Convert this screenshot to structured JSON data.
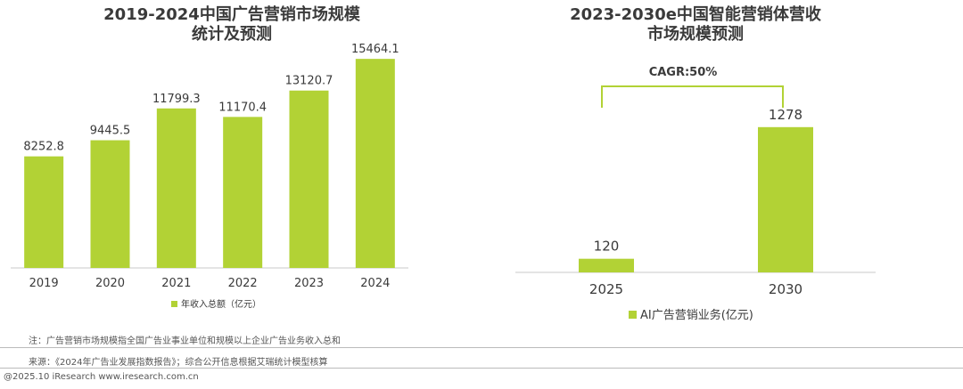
{
  "colors": {
    "bar": "#b2d235",
    "axis": "#c8c8c8",
    "text": "#3a3a3a",
    "bracket": "#b2d235"
  },
  "chart_data": [
    {
      "type": "bar",
      "title_line1": "2019-2024中国广告营销市场规模",
      "title_line2": "统计及预测",
      "categories": [
        "2019",
        "2020",
        "2021",
        "2022",
        "2023",
        "2024"
      ],
      "values": [
        8252.8,
        9445.5,
        11799.3,
        11170.4,
        13120.7,
        15464.1
      ],
      "value_labels": [
        "8252.8",
        "9445.5",
        "11799.3",
        "11170.4",
        "13120.7",
        "15464.1"
      ],
      "legend": "年收入总额（亿元）",
      "ylim": [
        0,
        16000
      ]
    },
    {
      "type": "bar",
      "title_line1": "2023-2030e中国智能营销体营收",
      "title_line2": "市场规模预测",
      "categories": [
        "2025",
        "2030"
      ],
      "values": [
        120,
        1278
      ],
      "value_labels": [
        "120",
        "1278"
      ],
      "legend": "AI广告营销业务(亿元)",
      "annotation": "CAGR:50%",
      "ylim": [
        0,
        1300
      ]
    }
  ],
  "notes": {
    "note1": "注：广告营销市场规模指全国广告业事业单位和规模以上企业广告业务收入总和",
    "note2": "来源：《2024年广告业发展指数报告》；综合公开信息根据艾瑞统计模型核算",
    "footer": "@2025.10 iResearch www.iresearch.com.cn"
  }
}
